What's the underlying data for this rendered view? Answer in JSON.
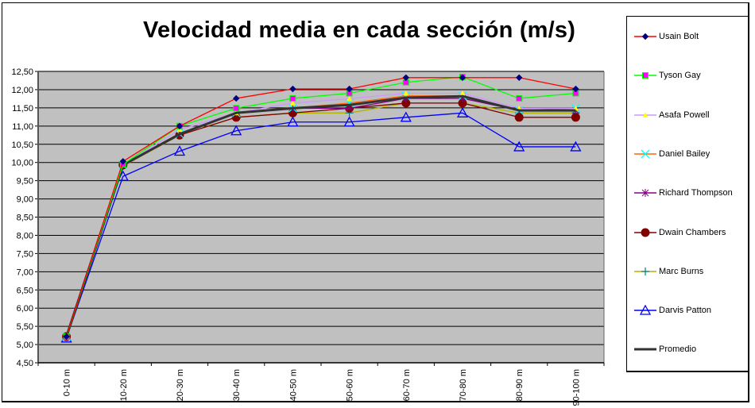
{
  "chart_data": {
    "type": "line",
    "title": "Velocidad media en cada sección (m/s)",
    "xlabel": "",
    "ylabel": "",
    "categories": [
      "0-10 m",
      "10-20 m",
      "20-30 m",
      "30-40 m",
      "40-50 m",
      "50-60 m",
      "60-70 m",
      "70-80 m",
      "80-90 m",
      "90-100 m"
    ],
    "ylim": [
      4.5,
      12.5
    ],
    "yticks": [
      "4,50",
      "5,00",
      "5,50",
      "6,00",
      "6,50",
      "7,00",
      "7,50",
      "8,00",
      "8,50",
      "9,00",
      "9,50",
      "10,00",
      "10,50",
      "11,00",
      "11,50",
      "12,00",
      "12,50"
    ],
    "grid": true,
    "plot_background": "#c0c0c0",
    "legend_position": "right",
    "series": [
      {
        "name": "Usain Bolt",
        "color": "#ff0000",
        "marker": "diamond",
        "marker_color": "#000080",
        "values": [
          5.22,
          10.03,
          11.0,
          11.76,
          12.02,
          12.02,
          12.33,
          12.33,
          12.33,
          12.02
        ]
      },
      {
        "name": "Tyson Gay",
        "color": "#00ff00",
        "marker": "square",
        "marker_color": "#ff00ff",
        "values": [
          5.22,
          9.95,
          11.0,
          11.49,
          11.76,
          11.9,
          12.2,
          12.35,
          11.76,
          11.9
        ]
      },
      {
        "name": "Asafa Powell",
        "color": "#cc99ff",
        "marker": "triangle",
        "marker_color": "#ffff00",
        "values": [
          5.22,
          9.93,
          10.9,
          11.36,
          11.63,
          11.75,
          11.9,
          11.9,
          11.49,
          11.49
        ]
      },
      {
        "name": "Daniel Bailey",
        "color": "#ff6600",
        "marker": "x",
        "marker_color": "#00ffff",
        "values": [
          5.22,
          9.93,
          10.78,
          11.36,
          11.49,
          11.63,
          11.83,
          11.83,
          11.43,
          11.49
        ]
      },
      {
        "name": "Richard Thompson",
        "color": "#800080",
        "marker": "star",
        "marker_color": "#800080",
        "values": [
          5.22,
          9.93,
          10.78,
          11.36,
          11.49,
          11.49,
          11.76,
          11.76,
          11.43,
          11.43
        ]
      },
      {
        "name": "Dwain Chambers",
        "color": "#800000",
        "marker": "circle",
        "marker_color": "#800000",
        "values": [
          5.22,
          9.93,
          10.75,
          11.24,
          11.36,
          11.49,
          11.63,
          11.63,
          11.24,
          11.24
        ]
      },
      {
        "name": "Marc Burns",
        "color": "#b3b300",
        "marker": "plus",
        "marker_color": "#008080",
        "values": [
          5.22,
          9.9,
          10.75,
          11.24,
          11.36,
          11.36,
          11.63,
          11.63,
          11.36,
          11.36
        ]
      },
      {
        "name": "Darvis Patton",
        "color": "#0000ff",
        "marker": "triangle-open",
        "marker_color": "#0000ff",
        "values": [
          5.18,
          9.62,
          10.31,
          10.87,
          11.11,
          11.11,
          11.24,
          11.36,
          10.43,
          10.43
        ]
      },
      {
        "name": "Promedio",
        "color": "#333333",
        "marker": "none",
        "marker_color": "#333333",
        "values": [
          5.22,
          9.93,
          10.78,
          11.36,
          11.49,
          11.58,
          11.78,
          11.82,
          11.43,
          11.43
        ]
      }
    ]
  }
}
